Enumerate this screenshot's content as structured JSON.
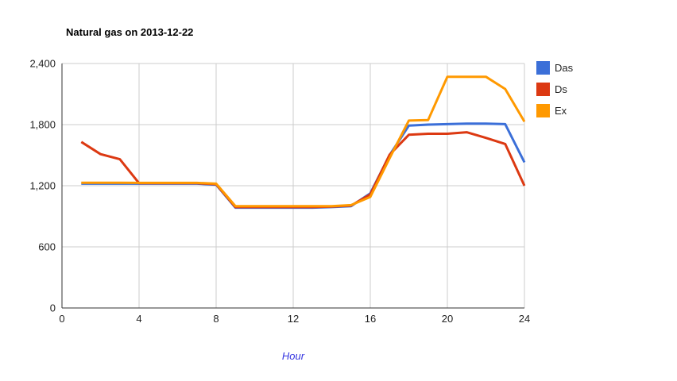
{
  "title": "Natural gas on 2013-12-22",
  "chart_data": {
    "type": "line",
    "title": "Natural gas on 2013-12-22",
    "xlabel": "Hour",
    "ylabel": "",
    "xlim": [
      0,
      24
    ],
    "ylim": [
      0,
      2400
    ],
    "x_ticks": [
      0,
      4,
      8,
      12,
      16,
      20,
      24
    ],
    "y_ticks": [
      0,
      600,
      1200,
      1800,
      2400
    ],
    "y_tick_labels": [
      "0",
      "600",
      "1,200",
      "1,800",
      "2,400"
    ],
    "grid": true,
    "legend_position": "right",
    "x": [
      1,
      2,
      3,
      4,
      5,
      6,
      7,
      8,
      9,
      10,
      11,
      12,
      13,
      14,
      15,
      16,
      17,
      18,
      19,
      20,
      21,
      22,
      23,
      24
    ],
    "series": [
      {
        "name": "Das",
        "color": "#3B6FD8",
        "values": [
          1220,
          1220,
          1220,
          1220,
          1220,
          1220,
          1220,
          1210,
          985,
          985,
          985,
          985,
          985,
          990,
          1000,
          1125,
          1500,
          1790,
          1800,
          1805,
          1810,
          1810,
          1805,
          1430
        ]
      },
      {
        "name": "Ds",
        "color": "#DC3912",
        "values": [
          1630,
          1510,
          1460,
          1225,
          1225,
          1225,
          1225,
          1215,
          990,
          990,
          990,
          990,
          990,
          995,
          1005,
          1115,
          1505,
          1700,
          1710,
          1710,
          1725,
          1670,
          1610,
          1200
        ]
      },
      {
        "name": "Ex",
        "color": "#FF9900",
        "values": [
          1230,
          1230,
          1230,
          1228,
          1228,
          1228,
          1228,
          1220,
          1000,
          1000,
          1000,
          1000,
          1000,
          1000,
          1010,
          1090,
          1470,
          1840,
          1845,
          2270,
          2270,
          2270,
          2150,
          1830
        ]
      }
    ],
    "style": {
      "grid_color": "#CCCCCC",
      "axis_line_color": "#333333",
      "tick_label_color": "#222222",
      "title_color": "#000000",
      "x_axis_title_color": "#3333E0",
      "line_width": 3
    }
  }
}
